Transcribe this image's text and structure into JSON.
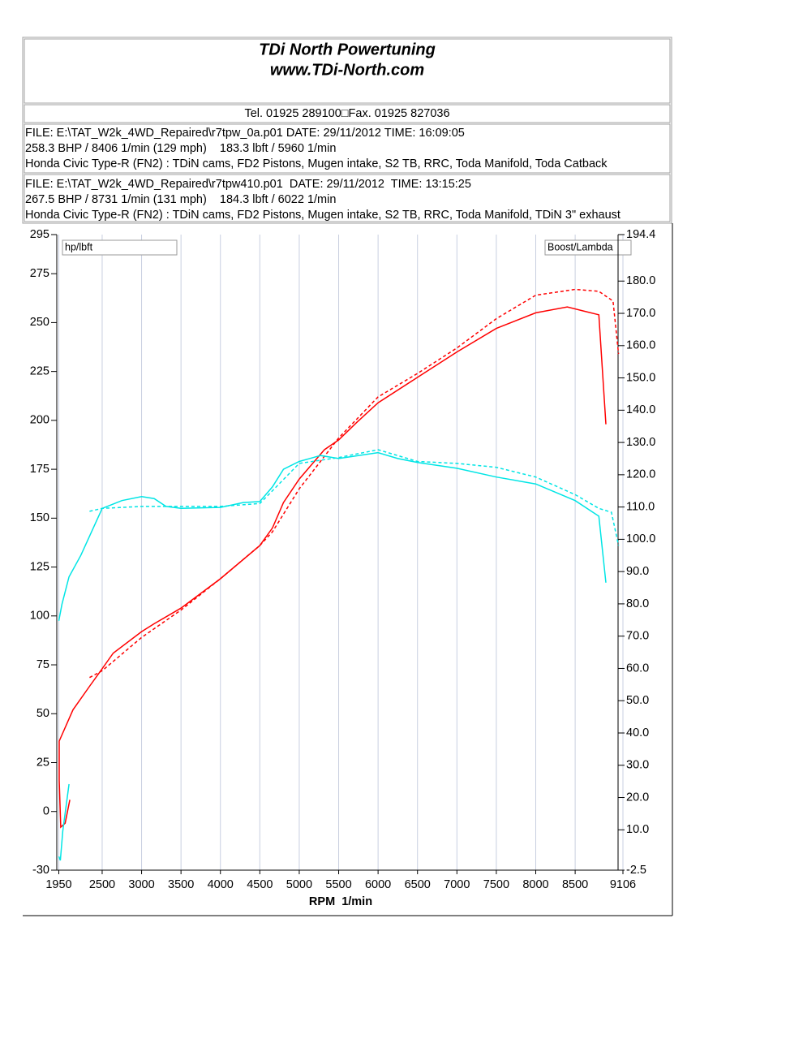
{
  "header": {
    "title": "TDi North Powertuning",
    "website": "www.TDi-North.com",
    "contact": "Tel. 01925 289100□Fax. 01925 827036",
    "runs": [
      {
        "file": "FILE: E:\\TAT_W2k_4WD_Repaired\\r7tpw_0a.p01 DATE: 29/11/2012 TIME: 16:09:05",
        "result": "258.3 BHP / 8406 1/min (129 mph)    183.3 lbft / 5960 1/min",
        "car": "Honda Civic Type-R (FN2) : TDiN cams, FD2 Pistons, Mugen intake, S2 TB, RRC, Toda Manifold, Toda Catback"
      },
      {
        "file": "FILE: E:\\TAT_W2k_4WD_Repaired\\r7tpw410.p01  DATE: 29/11/2012  TIME: 13:15:25",
        "result": "267.5 BHP / 8731 1/min (131 mph)    184.3 lbft / 6022 1/min",
        "car": "Honda Civic Type-R (FN2) : TDiN cams, FD2 Pistons, Mugen intake, S2 TB, RRC, Toda Manifold, TDiN 3\" exhaust"
      }
    ]
  },
  "chart_data": {
    "type": "line",
    "x_label": "RPM  1/min",
    "y_label": "hp/lbft",
    "y2_label": "Boost/Lambda",
    "xlim": [
      1950,
      9106
    ],
    "xticks": [
      1950,
      2500,
      3000,
      3500,
      4000,
      4500,
      5000,
      5500,
      6000,
      6500,
      7000,
      7500,
      8000,
      8500,
      9106
    ],
    "ylim": [
      -30,
      295
    ],
    "yticks": [
      295,
      275,
      250,
      225,
      200,
      175,
      150,
      125,
      100,
      75,
      50,
      25,
      0,
      -30
    ],
    "y2lim": [
      -2.5,
      194.4
    ],
    "y2ticks": [
      194.4,
      {
        "value": 180,
        "label": "180.0"
      },
      {
        "value": 170,
        "label": "170.0"
      },
      {
        "value": 160,
        "label": "160.0"
      },
      {
        "value": 150,
        "label": "150.0"
      },
      {
        "value": 140,
        "label": "140.0"
      },
      {
        "value": 130,
        "label": "130.0"
      },
      {
        "value": 120,
        "label": "120.0"
      },
      {
        "value": 110,
        "label": "110.0"
      },
      {
        "value": 100,
        "label": "100.0"
      },
      {
        "value": 90,
        "label": "90.0"
      },
      {
        "value": 80,
        "label": "80.0"
      },
      {
        "value": 70,
        "label": "70.0"
      },
      {
        "value": 60,
        "label": "60.0"
      },
      {
        "value": 50,
        "label": "50.0"
      },
      {
        "value": 40,
        "label": "40.0"
      },
      {
        "value": 30,
        "label": "30.0"
      },
      {
        "value": 20,
        "label": "20.0"
      },
      {
        "value": 10,
        "label": "10.0"
      },
      -2.5
    ],
    "x_grid": true,
    "series": [
      {
        "color": "#ff0000",
        "line_style": "solid",
        "x": [
          2090,
          2030,
          1975,
          1955,
          1955,
          2130,
          2340,
          2500,
          2640,
          3000,
          3160,
          3500,
          4000,
          4500,
          4660,
          4800,
          5000,
          5320,
          5500,
          5730,
          6000,
          6500,
          7000,
          7500,
          8000,
          8400,
          8600,
          8800,
          8890
        ],
        "values": [
          6,
          -6,
          -8,
          16,
          36,
          52,
          64,
          73,
          81,
          92,
          96,
          104,
          119,
          136,
          145,
          158,
          170,
          185,
          190,
          199,
          209,
          222,
          235,
          247,
          255,
          258,
          256,
          254,
          198
        ]
      },
      {
        "color": "#ff0000",
        "line_style": "dashed",
        "x": [
          2340,
          2500,
          3000,
          3500,
          4000,
          4500,
          4660,
          5000,
          5500,
          6000,
          6500,
          7000,
          7500,
          8000,
          8500,
          8800,
          8980,
          9050
        ],
        "values": [
          68.5,
          72,
          89,
          103,
          119,
          136,
          143,
          165,
          191,
          212,
          224,
          237,
          252,
          264,
          267,
          266,
          261,
          234
        ]
      },
      {
        "color": "#00e5e5",
        "line_style": "solid",
        "x": [
          1950,
          1970,
          2000,
          2080,
          null,
          1950,
          1990,
          2080,
          2230,
          2500,
          2750,
          3000,
          3160,
          3310,
          3500,
          4000,
          4290,
          4500,
          4660,
          4800,
          5000,
          5270,
          5500,
          6000,
          6250,
          6500,
          7000,
          7500,
          8000,
          8500,
          8800,
          8890
        ],
        "values": [
          -23,
          -25,
          -10,
          14,
          null,
          97.5,
          106,
          120,
          131,
          155,
          159,
          161,
          160,
          156,
          155,
          155.5,
          158,
          158.5,
          166,
          175,
          179,
          182,
          180.5,
          183.5,
          180.5,
          178.5,
          175.5,
          171,
          167.5,
          159,
          151,
          117
        ]
      },
      {
        "color": "#00e5e5",
        "line_style": "dashed",
        "x": [
          2340,
          2500,
          3000,
          3500,
          4000,
          4500,
          4660,
          5000,
          5500,
          6000,
          6500,
          7000,
          7500,
          8000,
          8500,
          8800,
          8960,
          9050
        ],
        "values": [
          153.5,
          155,
          156,
          156,
          156,
          157.5,
          164,
          178,
          181,
          185,
          179,
          178,
          176,
          171,
          162,
          155,
          153,
          136
        ]
      }
    ]
  }
}
